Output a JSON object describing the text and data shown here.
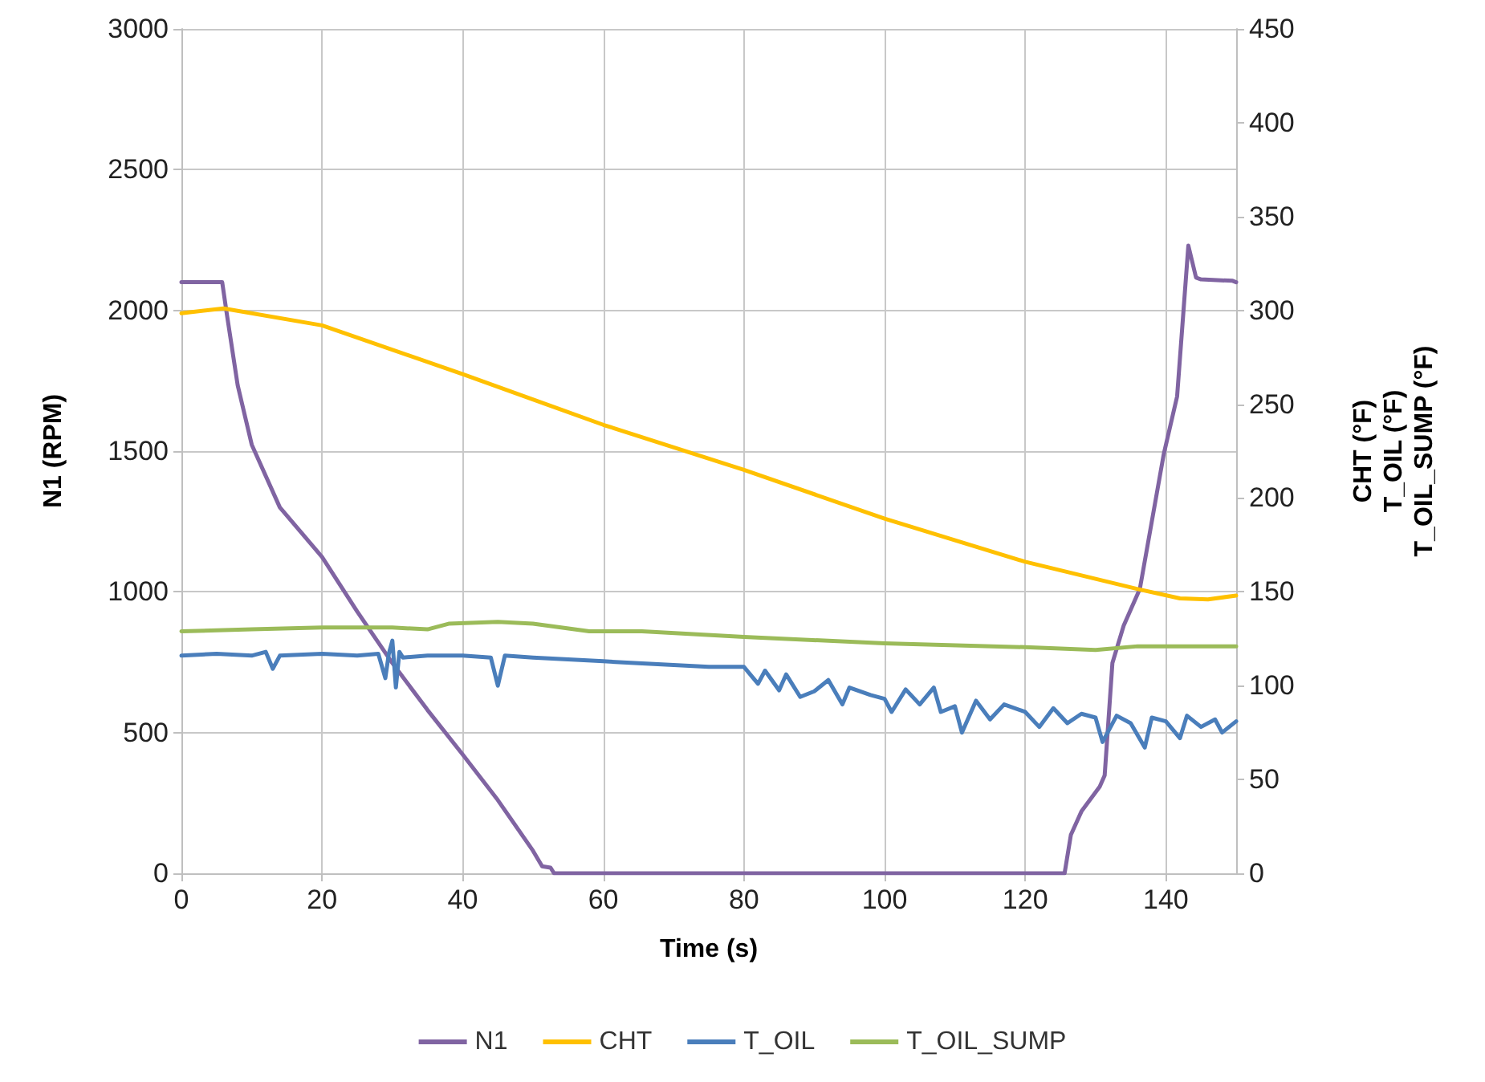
{
  "chart_data": {
    "type": "line",
    "xlabel": "Time (s)",
    "ylabel": "N1 (RPM)",
    "y2label": "CHT (°F)\nT_OIL (°F)\nT_OIL_SUMP (°F)",
    "xlim": [
      0,
      150
    ],
    "xticks": [
      0,
      20,
      40,
      60,
      80,
      100,
      120,
      140
    ],
    "ylim": [
      0,
      3000
    ],
    "yticks": [
      0,
      500,
      1000,
      1500,
      2000,
      2500,
      3000
    ],
    "y2lim": [
      0,
      450
    ],
    "y2ticks": [
      0,
      50,
      100,
      150,
      200,
      250,
      300,
      350,
      400,
      450
    ],
    "grid": true,
    "legend": "bottom",
    "marker": "none",
    "line_style": "solid",
    "series": [
      {
        "name": "N1",
        "color": "#8064a2",
        "x": [
          0,
          5.8,
          6.5,
          8,
          10,
          14,
          20,
          25,
          30,
          35,
          40,
          45,
          50,
          51.3,
          52.5,
          53,
          80,
          100,
          125.6,
          126.5,
          128,
          130.6,
          131.3,
          132.4,
          134,
          136.3,
          139.7,
          141.6,
          143.2,
          144.3,
          145,
          149.5,
          150
        ],
        "values": [
          2100,
          2100,
          1980,
          1734,
          1523,
          1300,
          1124,
          930,
          747,
          580,
          422,
          260,
          80,
          25,
          20,
          0,
          0,
          0,
          0,
          137,
          220,
          308,
          348,
          747,
          880,
          1010,
          1489,
          1694,
          2230,
          2116,
          2110,
          2105,
          2100
        ]
      },
      {
        "name": "CHT",
        "color": "#ffc000",
        "axis": "y2",
        "x": [
          0,
          6,
          20,
          40,
          60,
          80,
          100,
          120,
          136,
          142,
          146,
          150
        ],
        "values": [
          298.5,
          301,
          292,
          266,
          239,
          215,
          189,
          166,
          151.5,
          146.5,
          146,
          148
        ]
      },
      {
        "name": "T_OIL",
        "color": "#4a7ebb",
        "axis": "y2",
        "x": [
          0,
          5,
          10,
          12,
          13,
          14,
          20,
          25,
          28,
          29,
          29.5,
          30,
          30.5,
          31,
          31.5,
          35,
          40,
          44,
          45,
          46,
          50,
          55,
          60,
          65,
          70,
          75,
          80,
          82,
          83,
          85,
          86,
          88,
          90,
          92,
          94,
          95,
          98,
          100,
          101,
          103,
          105,
          107,
          108,
          110,
          111,
          113,
          115,
          117,
          120,
          122,
          124,
          126,
          128,
          130,
          131,
          133,
          135,
          137,
          138,
          140,
          142,
          143,
          145,
          147,
          148,
          150
        ],
        "values": [
          116,
          117,
          116,
          118,
          109,
          116,
          117,
          116,
          117,
          104,
          117,
          124,
          99,
          118,
          115,
          116,
          116,
          115,
          100,
          116,
          115,
          114,
          113,
          112,
          111,
          110,
          110,
          101,
          108,
          97.5,
          106,
          94,
          97,
          103,
          90,
          99,
          95,
          93,
          86,
          98,
          90,
          99,
          86,
          89,
          75,
          92,
          82,
          90,
          86,
          78,
          88,
          80,
          85,
          83,
          70,
          84,
          80,
          67,
          83,
          81,
          72,
          84,
          78,
          82,
          75,
          81
        ]
      },
      {
        "name": "T_OIL_SUMP",
        "color": "#9bbb59",
        "axis": "y2",
        "x": [
          0,
          10,
          20,
          30,
          35,
          38,
          45,
          50,
          58,
          65.5,
          80,
          100,
          120,
          130,
          136,
          150
        ],
        "values": [
          129,
          130,
          131,
          131,
          130,
          133,
          134,
          133,
          129,
          129,
          126,
          122.5,
          120.5,
          119,
          121,
          121
        ]
      }
    ]
  }
}
